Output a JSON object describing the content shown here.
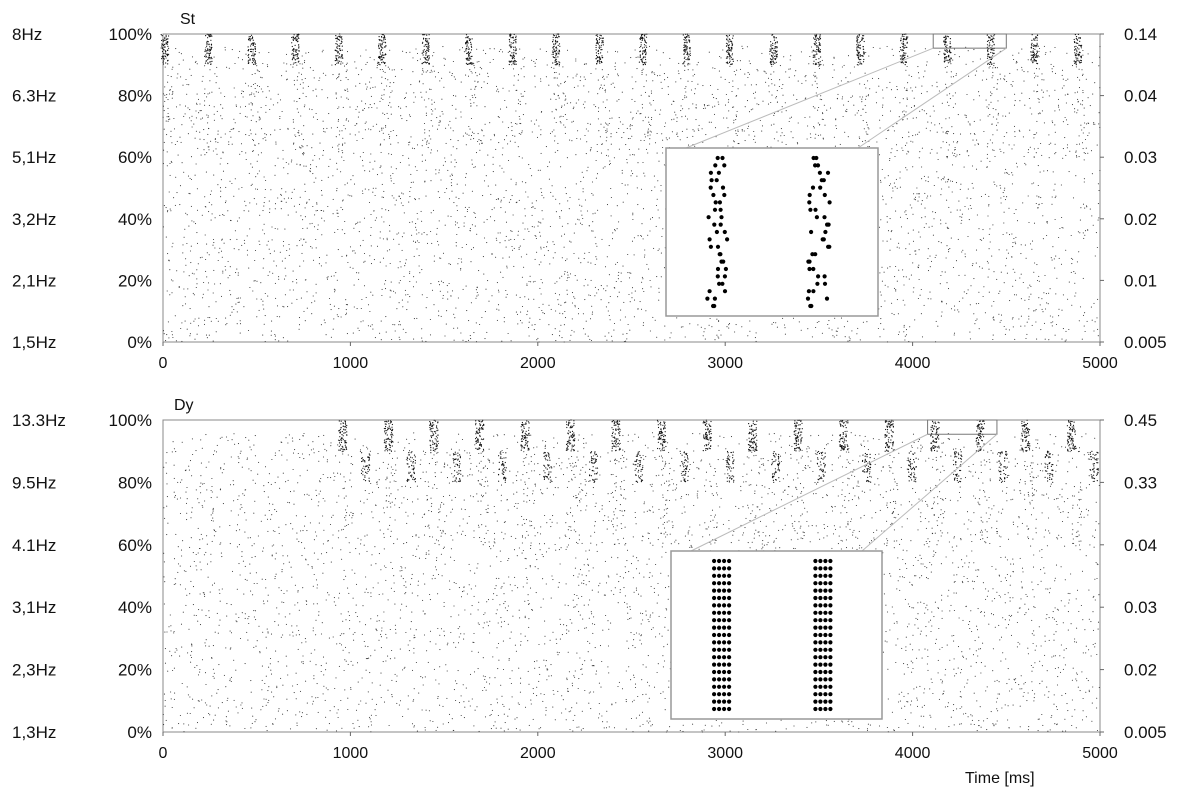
{
  "chart_data": [
    {
      "type": "scatter",
      "title": "St",
      "xlabel": "",
      "ylabel": "",
      "xlim": [
        0,
        5000
      ],
      "ylim": [
        0,
        100
      ],
      "x_ticks": [
        "0",
        "1000",
        "2000",
        "3000",
        "4000",
        "5000"
      ],
      "y_ticks_percent": [
        "0%",
        "20%",
        "40%",
        "60%",
        "80%",
        "100%"
      ],
      "y_ticks_rate": [
        "1,5Hz",
        "2,1Hz",
        "3,2Hz",
        "5,1Hz",
        "6.3Hz",
        "8Hz"
      ],
      "y_ticks_right": [
        "0.005",
        "0.01",
        "0.02",
        "0.03",
        "0.04",
        "0.14"
      ],
      "description_series": {
        "background_spike_rate_hz": 1.5,
        "top_population_burst_period_ms": 232,
        "first_burst_ms": 10,
        "burst_width_ms": 40
      },
      "inset": {
        "zoom_window_ms": [
          4110,
          4500
        ],
        "zoom_window_percent": [
          98,
          100
        ],
        "columns": 2
      },
      "grid": false,
      "legend": "none"
    },
    {
      "type": "scatter",
      "title": "Dy",
      "xlabel": "Time [ms]",
      "ylabel": "",
      "xlim": [
        0,
        5000
      ],
      "ylim": [
        0,
        100
      ],
      "x_ticks": [
        "0",
        "1000",
        "2000",
        "3000",
        "4000",
        "5000"
      ],
      "y_ticks_percent": [
        "0%",
        "20%",
        "40%",
        "60%",
        "80%",
        "100%"
      ],
      "y_ticks_rate": [
        "1,3Hz",
        "2,3Hz",
        "3,1Hz",
        "4.1Hz",
        "9.5Hz",
        "13.3Hz"
      ],
      "y_ticks_right": [
        "0.005",
        "0.02",
        "0.03",
        "0.04",
        "0.33",
        "0.45"
      ],
      "description_series": {
        "background_spike_rate_hz": 1.3,
        "top_population_burst_period_ms": 243,
        "first_burst_ms": 960,
        "burst_width_ms": 45
      },
      "inset": {
        "zoom_window_ms": [
          4080,
          4450
        ],
        "zoom_window_percent": [
          98,
          100
        ],
        "columns": 2
      },
      "grid": false,
      "legend": "none"
    }
  ]
}
